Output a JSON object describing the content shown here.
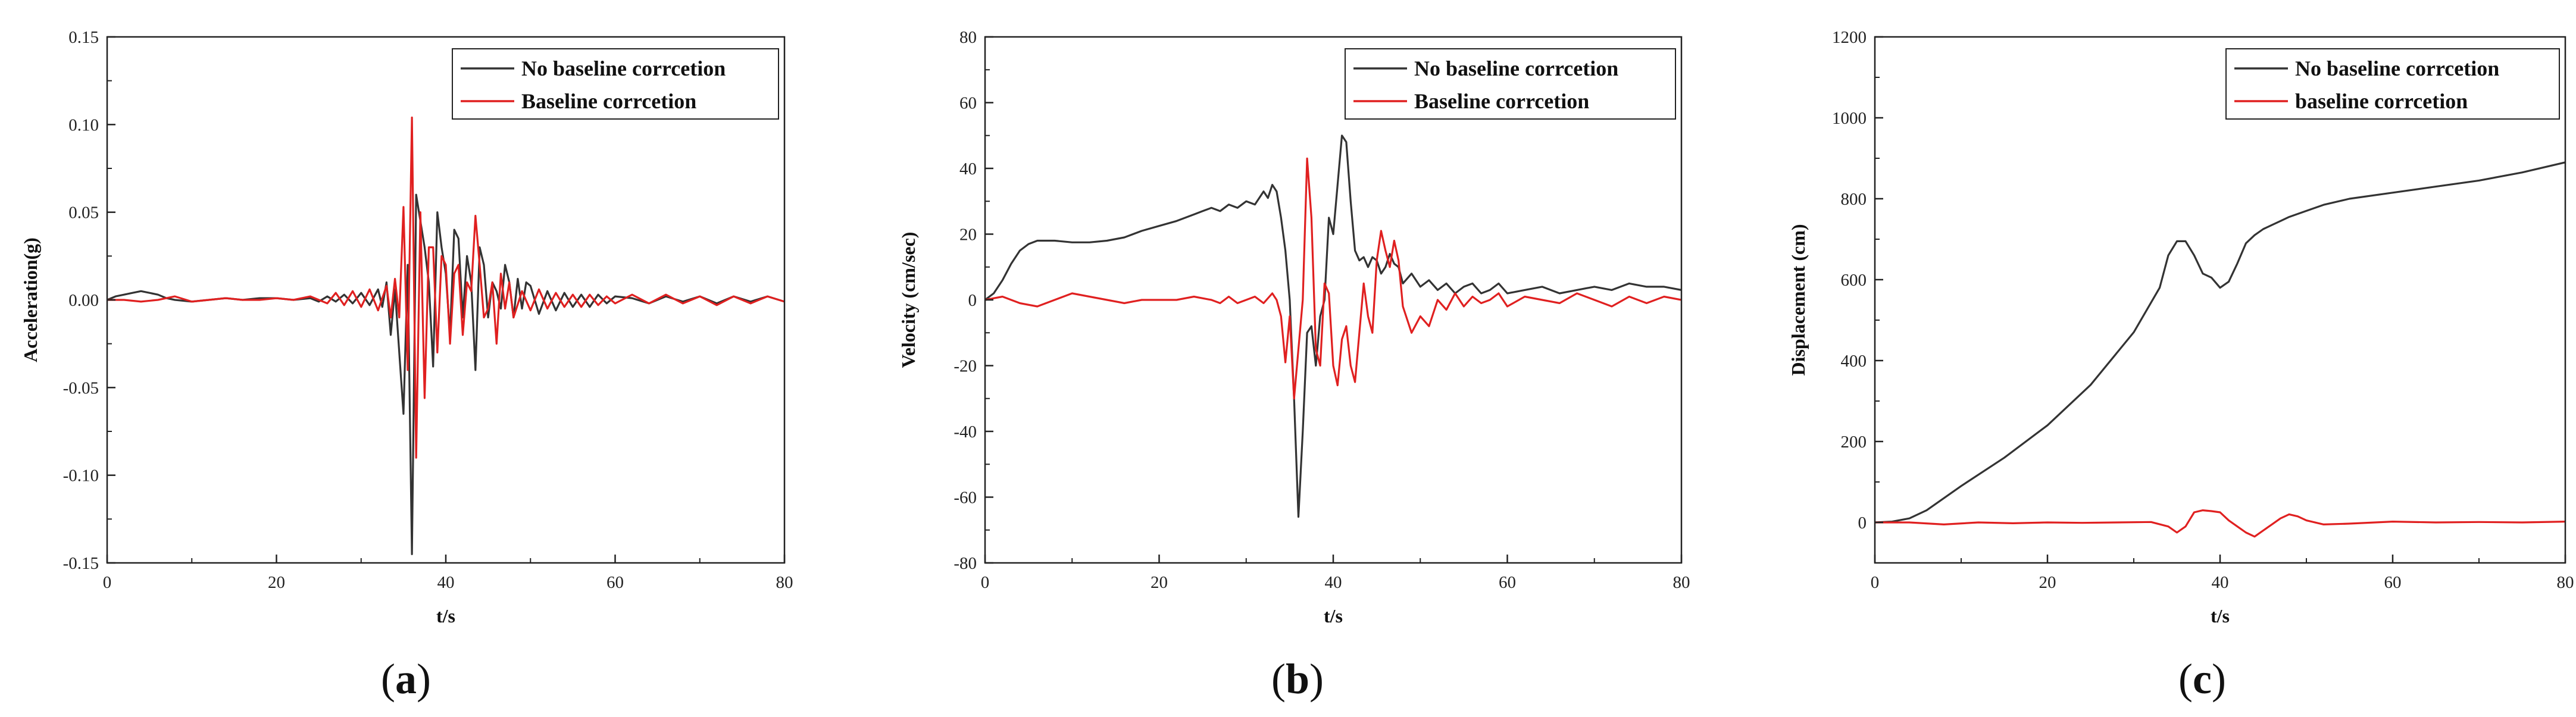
{
  "chart_data": [
    {
      "type": "line",
      "panel": "(a)",
      "panel_letter": "a",
      "xlabel": "t/s",
      "ylabel": "Acceleration(g)",
      "xlim": [
        0,
        80
      ],
      "ylim": [
        -0.15,
        0.15
      ],
      "xticks": [
        0,
        20,
        40,
        60,
        80
      ],
      "xtick_labels": [
        "0",
        "20",
        "40",
        "60",
        "80"
      ],
      "yticks": [
        -0.15,
        -0.1,
        -0.05,
        0.0,
        0.05,
        0.1,
        0.15
      ],
      "ytick_labels": [
        "-0.15",
        "-0.10",
        "-0.05",
        "0.00",
        "0.05",
        "0.10",
        "0.15"
      ],
      "legend_position": "top-right",
      "grid": false,
      "series": [
        {
          "name": "No baseline corrcetion",
          "color": "#333333",
          "x": [
            0,
            1,
            2,
            3,
            4,
            5,
            6,
            7,
            8,
            10,
            12,
            14,
            16,
            18,
            20,
            22,
            24,
            25,
            26,
            27,
            28,
            29,
            30,
            31,
            32,
            32.5,
            33,
            33.5,
            34,
            34.5,
            35,
            35.5,
            36,
            36.5,
            37,
            37.5,
            38,
            38.5,
            39,
            39.5,
            40,
            40.5,
            41,
            41.5,
            42,
            42.5,
            43,
            43.5,
            44,
            44.5,
            45,
            45.5,
            46,
            46.5,
            47,
            47.5,
            48,
            48.5,
            49,
            49.5,
            50,
            51,
            52,
            53,
            54,
            55,
            56,
            57,
            58,
            59,
            60,
            62,
            64,
            66,
            68,
            70,
            72,
            74,
            76,
            78,
            80
          ],
          "y": [
            0,
            0.002,
            0.003,
            0.004,
            0.005,
            0.004,
            0.003,
            0.001,
            0,
            -0.001,
            0,
            0.001,
            0,
            0.001,
            0.001,
            0,
            0.001,
            -0.001,
            0.002,
            -0.001,
            0.003,
            -0.002,
            0.004,
            -0.003,
            0.006,
            -0.004,
            0.01,
            -0.02,
            0.006,
            -0.03,
            -0.065,
            0.02,
            -0.145,
            0.06,
            0.045,
            0.03,
            0.01,
            -0.038,
            0.05,
            0.03,
            0.015,
            -0.02,
            0.04,
            0.035,
            -0.01,
            0.025,
            0.01,
            -0.04,
            0.03,
            0.02,
            -0.01,
            0.01,
            0.005,
            -0.005,
            0.02,
            0.01,
            -0.01,
            0.012,
            -0.005,
            0.01,
            0.008,
            -0.008,
            0.005,
            -0.006,
            0.004,
            -0.004,
            0.003,
            -0.004,
            0.003,
            -0.002,
            0.002,
            0.001,
            -0.002,
            0.002,
            -0.001,
            0.002,
            -0.002,
            0.002,
            -0.001,
            0.002,
            -0.001
          ]
        },
        {
          "name": "Baseline corrcetion",
          "color": "#e02020",
          "x": [
            0,
            2,
            4,
            6,
            8,
            10,
            12,
            14,
            16,
            18,
            20,
            22,
            24,
            26,
            27,
            28,
            29,
            30,
            31,
            32,
            33,
            33.5,
            34,
            34.5,
            35,
            35.5,
            36,
            36.5,
            37,
            37.5,
            38,
            38.5,
            39,
            39.5,
            40,
            40.5,
            41,
            41.5,
            42,
            42.5,
            43,
            43.5,
            44,
            44.5,
            45,
            45.5,
            46,
            46.5,
            47,
            47.5,
            48,
            49,
            50,
            51,
            52,
            53,
            54,
            55,
            56,
            57,
            58,
            59,
            60,
            62,
            64,
            66,
            68,
            70,
            72,
            74,
            76,
            78,
            80
          ],
          "y": [
            0,
            0,
            -0.001,
            0,
            0.002,
            -0.001,
            0,
            0.001,
            0,
            0,
            0.001,
            0,
            0.002,
            -0.002,
            0.004,
            -0.003,
            0.005,
            -0.004,
            0.006,
            -0.006,
            0.008,
            -0.01,
            0.012,
            -0.01,
            0.053,
            -0.04,
            0.104,
            -0.09,
            0.05,
            -0.056,
            0.03,
            0.03,
            -0.03,
            0.025,
            0.02,
            -0.025,
            0.015,
            0.02,
            -0.02,
            0.01,
            0.005,
            0.048,
            0.02,
            -0.01,
            -0.005,
            0.01,
            -0.025,
            0.015,
            -0.005,
            0.01,
            -0.01,
            0.005,
            -0.006,
            0.006,
            -0.005,
            0.004,
            -0.004,
            0.003,
            -0.004,
            0.003,
            -0.003,
            0.002,
            -0.002,
            0.003,
            -0.002,
            0.003,
            -0.002,
            0.002,
            -0.003,
            0.002,
            -0.002,
            0.002,
            -0.001
          ]
        }
      ]
    },
    {
      "type": "line",
      "panel": "(b)",
      "panel_letter": "b",
      "xlabel": "t/s",
      "ylabel": "Velocity (cm/sec)",
      "xlim": [
        0,
        80
      ],
      "ylim": [
        -80,
        80
      ],
      "xticks": [
        0,
        20,
        40,
        60,
        80
      ],
      "xtick_labels": [
        "0",
        "20",
        "40",
        "60",
        "80"
      ],
      "yticks": [
        -80,
        -60,
        -40,
        -20,
        0,
        20,
        40,
        60,
        80
      ],
      "ytick_labels": [
        "-80",
        "-60",
        "-40",
        "-20",
        "0",
        "20",
        "40",
        "60",
        "80"
      ],
      "legend_position": "top-right",
      "grid": false,
      "series": [
        {
          "name": "No baseline corrcetion",
          "color": "#333333",
          "x": [
            0,
            1,
            2,
            3,
            4,
            5,
            6,
            7,
            8,
            10,
            12,
            14,
            16,
            18,
            20,
            22,
            24,
            25,
            26,
            27,
            28,
            29,
            30,
            31,
            32,
            32.5,
            33,
            33.5,
            34,
            34.5,
            35,
            35.5,
            36,
            36.5,
            37,
            37.5,
            38,
            38.5,
            39,
            39.5,
            40,
            40.5,
            41,
            41.5,
            42,
            42.5,
            43,
            43.5,
            44,
            44.5,
            45,
            45.5,
            46,
            46.5,
            47,
            47.5,
            48,
            49,
            50,
            51,
            52,
            53,
            54,
            55,
            56,
            57,
            58,
            59,
            60,
            62,
            64,
            66,
            68,
            70,
            72,
            74,
            76,
            78,
            80
          ],
          "y": [
            0,
            2,
            6,
            11,
            15,
            17,
            18,
            18,
            18,
            17.5,
            17.5,
            18,
            19,
            21,
            22.5,
            24,
            26,
            27,
            28,
            27,
            29,
            28,
            30,
            29,
            33,
            31,
            35,
            33,
            25,
            15,
            0,
            -30,
            -66,
            -40,
            -10,
            -8,
            -20,
            -5,
            0,
            25,
            20,
            35,
            50,
            48,
            30,
            15,
            12,
            13,
            10,
            13,
            12,
            8,
            10,
            14,
            11,
            10,
            5,
            8,
            4,
            6,
            3,
            5,
            2,
            4,
            5,
            2,
            3,
            5,
            2,
            3,
            4,
            2,
            3,
            4,
            3,
            5,
            4,
            4,
            3
          ]
        },
        {
          "name": "Baseline corrcetion",
          "color": "#e02020",
          "x": [
            0,
            2,
            4,
            6,
            8,
            10,
            12,
            14,
            16,
            18,
            20,
            22,
            24,
            26,
            27,
            28,
            29,
            30,
            31,
            32,
            33,
            33.5,
            34,
            34.5,
            35,
            35.5,
            36,
            36.5,
            37,
            37.5,
            38,
            38.5,
            39,
            39.5,
            40,
            40.5,
            41,
            41.5,
            42,
            42.5,
            43,
            43.5,
            44,
            44.5,
            45,
            45.5,
            46,
            46.5,
            47,
            47.5,
            48,
            49,
            50,
            51,
            52,
            53,
            54,
            55,
            56,
            57,
            58,
            59,
            60,
            62,
            64,
            66,
            68,
            70,
            72,
            74,
            76,
            78,
            80
          ],
          "y": [
            0,
            1,
            -1,
            -2,
            0,
            2,
            1,
            0,
            -1,
            0,
            0,
            0,
            1,
            0,
            -1,
            1,
            -1,
            0,
            1,
            -1,
            2,
            0,
            -5,
            -19,
            -5,
            -30,
            -15,
            0,
            43,
            25,
            -15,
            -20,
            5,
            2,
            -20,
            -26,
            -12,
            -8,
            -20,
            -25,
            -10,
            5,
            -5,
            -10,
            12,
            21,
            15,
            10,
            18,
            12,
            -2,
            -10,
            -5,
            -8,
            0,
            -3,
            2,
            -2,
            1,
            -1,
            0,
            2,
            -2,
            1,
            0,
            -1,
            2,
            0,
            -2,
            1,
            -1,
            1,
            0
          ]
        }
      ]
    },
    {
      "type": "line",
      "panel": "(c)",
      "panel_letter": "c",
      "xlabel": "t/s",
      "ylabel": "Displacement (cm)",
      "xlim": [
        0,
        80
      ],
      "ylim": [
        -100,
        1200
      ],
      "xticks": [
        0,
        20,
        40,
        60,
        80
      ],
      "xtick_labels": [
        "0",
        "20",
        "40",
        "60",
        "80"
      ],
      "yticks": [
        0,
        200,
        400,
        600,
        800,
        1000,
        1200
      ],
      "ytick_labels": [
        "0",
        "200",
        "400",
        "600",
        "800",
        "1000",
        "1200"
      ],
      "legend_position": "top-right",
      "grid": false,
      "series": [
        {
          "name": "No baseline corrcetion",
          "color": "#333333",
          "x": [
            0,
            2,
            4,
            6,
            8,
            10,
            15,
            20,
            25,
            30,
            33,
            34,
            35,
            36,
            37,
            38,
            39,
            40,
            41,
            42,
            43,
            44,
            45,
            46,
            47,
            48,
            50,
            52,
            55,
            60,
            65,
            70,
            75,
            80
          ],
          "y": [
            0,
            2,
            10,
            30,
            60,
            90,
            160,
            240,
            340,
            470,
            580,
            660,
            695,
            695,
            660,
            615,
            605,
            580,
            595,
            640,
            690,
            710,
            725,
            735,
            745,
            755,
            770,
            785,
            800,
            815,
            830,
            845,
            865,
            890
          ]
        },
        {
          "name": "baseline corrcetion",
          "color": "#e02020",
          "x": [
            0,
            4,
            8,
            12,
            16,
            20,
            24,
            28,
            32,
            34,
            35,
            36,
            37,
            38,
            39,
            40,
            41,
            42,
            43,
            44,
            45,
            46,
            47,
            48,
            49,
            50,
            52,
            55,
            60,
            65,
            70,
            75,
            80
          ],
          "y": [
            0,
            0,
            -5,
            0,
            -2,
            0,
            -1,
            0,
            1,
            -10,
            -25,
            -10,
            25,
            30,
            28,
            25,
            5,
            -10,
            -25,
            -35,
            -20,
            -5,
            10,
            20,
            15,
            5,
            -5,
            -3,
            2,
            0,
            1,
            0,
            2
          ]
        }
      ]
    }
  ]
}
